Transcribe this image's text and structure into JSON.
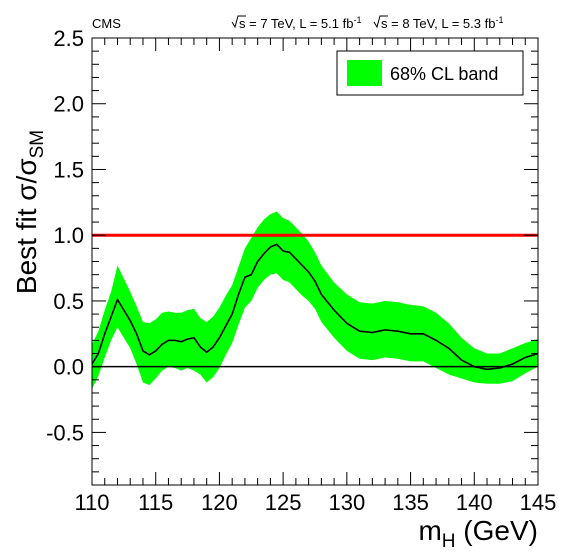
{
  "chart_data": {
    "type": "line",
    "experiment_label": "CMS",
    "header": {
      "run1": {
        "energy": "s = 7 TeV, L = 5.1 fb",
        "sup": "-1"
      },
      "run2": {
        "energy": "s = 8 TeV, L = 5.3 fb",
        "sup": "-1"
      }
    },
    "xlabel": {
      "main": "m",
      "sub": "H",
      "unit": " (GeV)"
    },
    "ylabel": {
      "main": "Best fit σ/σ",
      "sub": "SM"
    },
    "xlim": [
      110,
      145
    ],
    "ylim": [
      -0.9,
      2.5
    ],
    "xticks": [
      110,
      115,
      120,
      125,
      130,
      135,
      140,
      145
    ],
    "yticks": [
      -0.5,
      0.0,
      0.5,
      1.0,
      1.5,
      2.0,
      2.5
    ],
    "ytick_labels": [
      "-0.5",
      "0.0",
      "0.5",
      "1.0",
      "1.5",
      "2.0",
      "2.5"
    ],
    "legend": {
      "label": "68% CL band",
      "position": "top-right"
    },
    "reference_lines": [
      {
        "y": 1.0,
        "color": "#ff0000"
      },
      {
        "y": 0.0,
        "color": "#000000"
      }
    ],
    "series": [
      {
        "x": [
          110,
          110.5,
          111,
          111.5,
          112,
          112.5,
          113,
          113.5,
          114,
          114.5,
          115,
          115.5,
          116,
          116.5,
          117,
          117.5,
          118,
          118.5,
          119,
          119.5,
          120,
          120.5,
          121,
          121.5,
          122,
          122.5,
          123,
          123.5,
          124,
          124.5,
          125,
          125.5,
          126,
          126.5,
          127,
          127.5,
          128,
          129,
          130,
          131,
          132,
          133,
          134,
          135,
          136,
          137,
          138,
          139,
          140,
          141,
          142,
          143,
          144,
          145
        ],
        "y": [
          0.02,
          0.1,
          0.25,
          0.38,
          0.51,
          0.43,
          0.35,
          0.25,
          0.12,
          0.09,
          0.12,
          0.17,
          0.2,
          0.2,
          0.19,
          0.21,
          0.22,
          0.15,
          0.11,
          0.15,
          0.22,
          0.31,
          0.4,
          0.55,
          0.68,
          0.7,
          0.8,
          0.86,
          0.91,
          0.93,
          0.88,
          0.87,
          0.82,
          0.77,
          0.72,
          0.65,
          0.55,
          0.43,
          0.33,
          0.27,
          0.26,
          0.28,
          0.27,
          0.25,
          0.25,
          0.2,
          0.14,
          0.05,
          0.0,
          -0.02,
          -0.01,
          0.02,
          0.07,
          0.1
        ],
        "lower": [
          -0.17,
          -0.07,
          0.07,
          0.2,
          0.3,
          0.22,
          0.14,
          0.02,
          -0.12,
          -0.14,
          -0.09,
          -0.03,
          0.0,
          -0.01,
          -0.03,
          -0.01,
          -0.03,
          -0.06,
          -0.12,
          -0.08,
          -0.01,
          0.09,
          0.18,
          0.32,
          0.45,
          0.5,
          0.6,
          0.66,
          0.7,
          0.71,
          0.66,
          0.64,
          0.59,
          0.54,
          0.5,
          0.44,
          0.34,
          0.22,
          0.12,
          0.06,
          0.05,
          0.07,
          0.06,
          0.04,
          0.04,
          -0.01,
          -0.06,
          -0.09,
          -0.12,
          -0.13,
          -0.13,
          -0.11,
          -0.05,
          0.0
        ],
        "upper": [
          0.17,
          0.27,
          0.43,
          0.57,
          0.77,
          0.67,
          0.57,
          0.46,
          0.34,
          0.33,
          0.36,
          0.41,
          0.42,
          0.41,
          0.41,
          0.43,
          0.44,
          0.37,
          0.34,
          0.38,
          0.45,
          0.54,
          0.62,
          0.76,
          0.9,
          0.98,
          1.06,
          1.12,
          1.16,
          1.18,
          1.13,
          1.11,
          1.06,
          1.01,
          0.95,
          0.87,
          0.77,
          0.64,
          0.55,
          0.49,
          0.48,
          0.5,
          0.49,
          0.47,
          0.46,
          0.41,
          0.33,
          0.22,
          0.14,
          0.1,
          0.1,
          0.14,
          0.18,
          0.21
        ],
        "line_color": "#000000",
        "band_color": "#00ff00"
      }
    ]
  }
}
